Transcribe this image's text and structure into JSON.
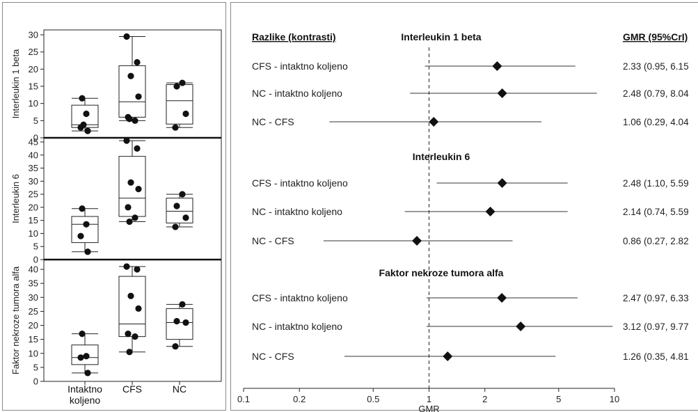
{
  "chart_data": [
    {
      "type": "box",
      "categories": [
        "Intaktno koljeno",
        "CFS",
        "NC"
      ],
      "panels": [
        {
          "ylabel": "Interleukin 1 beta",
          "ylim": [
            0,
            30
          ],
          "yticks": [
            0,
            5,
            10,
            15,
            20,
            25,
            30
          ],
          "boxes": [
            {
              "category": "Intaktno koljeno",
              "min": 2,
              "q1": 3,
              "median": 3.8,
              "q3": 9.5,
              "max": 11.5
            },
            {
              "category": "CFS",
              "min": 5,
              "q1": 6,
              "median": 10.5,
              "q3": 21,
              "max": 29.5
            },
            {
              "category": "NC",
              "min": 3,
              "q1": 4,
              "median": 10.8,
              "q3": 15.5,
              "max": 16
            }
          ],
          "points": [
            {
              "category": "Intaktno koljeno",
              "values": [
                11.5,
                7,
                3,
                2,
                3.8
              ]
            },
            {
              "category": "CFS",
              "values": [
                29.5,
                22,
                18,
                12,
                6,
                5,
                5.5
              ]
            },
            {
              "category": "NC",
              "values": [
                16,
                15,
                7,
                3
              ]
            }
          ]
        },
        {
          "ylabel": "Interleukin 6",
          "ylim": [
            0,
            45
          ],
          "yticks": [
            0,
            5,
            10,
            15,
            20,
            25,
            30,
            35,
            40,
            45
          ],
          "boxes": [
            {
              "category": "Intaktno koljeno",
              "min": 3,
              "q1": 6.5,
              "median": 13.5,
              "q3": 16.5,
              "max": 19.5
            },
            {
              "category": "CFS",
              "min": 14.5,
              "q1": 16.5,
              "median": 23.5,
              "q3": 39.5,
              "max": 45.5
            },
            {
              "category": "NC",
              "min": 12.5,
              "q1": 14,
              "median": 18.5,
              "q3": 23.5,
              "max": 25
            }
          ],
          "points": [
            {
              "category": "Intaktno koljeno",
              "values": [
                19.5,
                13.5,
                9,
                3
              ]
            },
            {
              "category": "CFS",
              "values": [
                45.5,
                42.5,
                29.5,
                27,
                20,
                16,
                14.5
              ]
            },
            {
              "category": "NC",
              "values": [
                25,
                20.5,
                16,
                12.5
              ]
            }
          ]
        },
        {
          "ylabel": "Faktor nekroze tumora alfa",
          "ylim": [
            0,
            42
          ],
          "yticks": [
            0,
            5,
            10,
            15,
            20,
            25,
            30,
            35,
            40
          ],
          "boxes": [
            {
              "category": "Intaktno koljeno",
              "min": 3,
              "q1": 6,
              "median": 8.5,
              "q3": 13,
              "max": 17
            },
            {
              "category": "CFS",
              "min": 10.5,
              "q1": 16,
              "median": 20.5,
              "q3": 37.5,
              "max": 41
            },
            {
              "category": "NC",
              "min": 12.5,
              "q1": 15,
              "median": 21,
              "q3": 26,
              "max": 27.5
            }
          ],
          "points": [
            {
              "category": "Intaktno koljeno",
              "values": [
                17,
                9,
                8.5,
                3
              ]
            },
            {
              "category": "CFS",
              "values": [
                41,
                40,
                30.5,
                26,
                17,
                16,
                10.5
              ]
            },
            {
              "category": "NC",
              "values": [
                27.5,
                21.5,
                21,
                12.5
              ]
            }
          ]
        }
      ],
      "xticklabels": [
        [
          "Intaktno",
          "koljeno"
        ],
        [
          "CFS"
        ],
        [
          "NC"
        ]
      ]
    },
    {
      "type": "forest",
      "header_left": "Razlike (kontrasti)",
      "header_right": "GMR (95%CrI)",
      "xlabel": "GMR",
      "xscale": "log",
      "xlim": [
        0.1,
        10
      ],
      "xticks": [
        0.1,
        0.2,
        0.5,
        1,
        2,
        5,
        10
      ],
      "xticklabels": [
        "0.1",
        "0.2",
        "0.5",
        "1",
        "2",
        "5",
        "10"
      ],
      "reference_line": 1,
      "groups": [
        {
          "title": "Interleukin 1 beta",
          "rows": [
            {
              "label": "CFS - intaktno koljeno",
              "est": 2.33,
              "lo": 0.95,
              "hi": 6.15,
              "text": "2.33 (0.95, 6.15"
            },
            {
              "label": "NC - intaktno koljeno",
              "est": 2.48,
              "lo": 0.79,
              "hi": 8.04,
              "text": "2.48 (0.79, 8.04"
            },
            {
              "label": "NC - CFS",
              "est": 1.06,
              "lo": 0.29,
              "hi": 4.04,
              "text": "1.06 (0.29, 4.04"
            }
          ]
        },
        {
          "title": "Interleukin 6",
          "rows": [
            {
              "label": "CFS - intaktno koljeno",
              "est": 2.48,
              "lo": 1.1,
              "hi": 5.59,
              "text": "2.48 (1.10, 5.59"
            },
            {
              "label": "NC - intaktno koljeno",
              "est": 2.14,
              "lo": 0.74,
              "hi": 5.59,
              "text": "2.14 (0.74, 5.59"
            },
            {
              "label": "NC - CFS",
              "est": 0.86,
              "lo": 0.27,
              "hi": 2.82,
              "text": "0.86 (0.27, 2.82"
            }
          ]
        },
        {
          "title": "Faktor nekroze tumora alfa",
          "rows": [
            {
              "label": "CFS - intaktno koljeno",
              "est": 2.47,
              "lo": 0.97,
              "hi": 6.33,
              "text": "2.47 (0.97, 6.33"
            },
            {
              "label": "NC - intaktno koljeno",
              "est": 3.12,
              "lo": 0.97,
              "hi": 9.77,
              "text": "3.12 (0.97, 9.77"
            },
            {
              "label": "NC - CFS",
              "est": 1.26,
              "lo": 0.35,
              "hi": 4.81,
              "text": "1.26 (0.35, 4.81"
            }
          ]
        }
      ]
    }
  ]
}
